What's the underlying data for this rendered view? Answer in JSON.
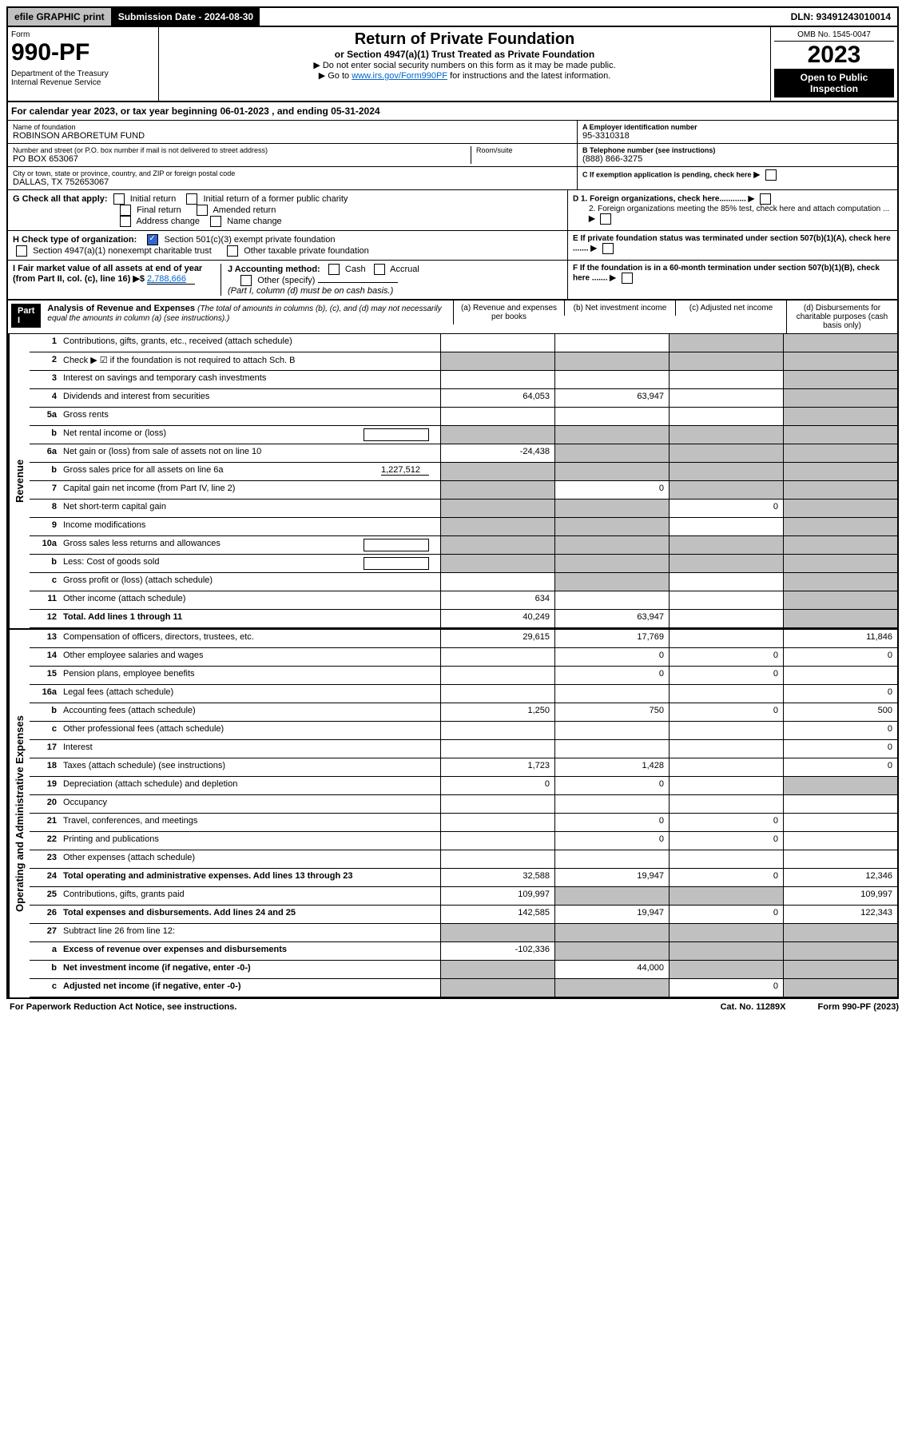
{
  "topbar": {
    "efile": "efile GRAPHIC print",
    "sub_label": "Submission Date - 2024-08-30",
    "dln": "DLN: 93491243010014"
  },
  "header": {
    "form_label": "Form",
    "form_number": "990-PF",
    "dept": "Department of the Treasury\nInternal Revenue Service",
    "title": "Return of Private Foundation",
    "subtitle": "or Section 4947(a)(1) Trust Treated as Private Foundation",
    "note1": "▶ Do not enter social security numbers on this form as it may be made public.",
    "note2_pre": "▶ Go to ",
    "note2_link": "www.irs.gov/Form990PF",
    "note2_post": " for instructions and the latest information.",
    "omb": "OMB No. 1545-0047",
    "year": "2023",
    "open": "Open to Public Inspection"
  },
  "cal_year": "For calendar year 2023, or tax year beginning 06-01-2023                 , and ending 05-31-2024",
  "foundation": {
    "name_label": "Name of foundation",
    "name": "ROBINSON ARBORETUM FUND",
    "addr_label": "Number and street (or P.O. box number if mail is not delivered to street address)",
    "addr": "PO BOX 653067",
    "room_label": "Room/suite",
    "city_label": "City or town, state or province, country, and ZIP or foreign postal code",
    "city": "DALLAS, TX  752653067",
    "ein_label": "A Employer identification number",
    "ein": "95-3310318",
    "phone_label": "B Telephone number (see instructions)",
    "phone": "(888) 866-3275",
    "c_label": "C If exemption application is pending, check here",
    "d1": "D 1. Foreign organizations, check here............",
    "d2": "2. Foreign organizations meeting the 85% test, check here and attach computation ...",
    "e_label": "E If private foundation status was terminated under section 507(b)(1)(A), check here .......",
    "f_label": "F If the foundation is in a 60-month termination under section 507(b)(1)(B), check here .......",
    "g_label": "G Check all that apply:",
    "g_opts": [
      "Initial return",
      "Initial return of a former public charity",
      "Final return",
      "Amended return",
      "Address change",
      "Name change"
    ],
    "h_label": "H Check type of organization:",
    "h_opt1": "Section 501(c)(3) exempt private foundation",
    "h_opt2": "Section 4947(a)(1) nonexempt charitable trust",
    "h_opt3": "Other taxable private foundation",
    "i_label": "I Fair market value of all assets at end of year (from Part II, col. (c), line 16) ▶$",
    "i_value": "2,788,666",
    "j_label": "J Accounting method:",
    "j_cash": "Cash",
    "j_accrual": "Accrual",
    "j_other": "Other (specify)",
    "j_note": "(Part I, column (d) must be on cash basis.)"
  },
  "part1": {
    "label": "Part I",
    "title": "Analysis of Revenue and Expenses",
    "note": "(The total of amounts in columns (b), (c), and (d) may not necessarily equal the amounts in column (a) (see instructions).)",
    "col_a": "(a) Revenue and expenses per books",
    "col_b": "(b) Net investment income",
    "col_c": "(c) Adjusted net income",
    "col_d": "(d) Disbursements for charitable purposes (cash basis only)"
  },
  "side_labels": {
    "revenue": "Revenue",
    "expenses": "Operating and Administrative Expenses"
  },
  "rows": [
    {
      "n": "1",
      "desc": "Contributions, gifts, grants, etc., received (attach schedule)",
      "a": "",
      "b": "",
      "c": "shaded",
      "d": "shaded"
    },
    {
      "n": "2",
      "desc": "Check ▶ ☑ if the foundation is not required to attach Sch. B",
      "a": "shaded",
      "b": "shaded",
      "c": "shaded",
      "d": "shaded",
      "checked": true
    },
    {
      "n": "3",
      "desc": "Interest on savings and temporary cash investments",
      "a": "",
      "b": "",
      "c": "",
      "d": "shaded"
    },
    {
      "n": "4",
      "desc": "Dividends and interest from securities",
      "a": "64,053",
      "b": "63,947",
      "c": "",
      "d": "shaded"
    },
    {
      "n": "5a",
      "desc": "Gross rents",
      "a": "",
      "b": "",
      "c": "",
      "d": "shaded"
    },
    {
      "n": "b",
      "desc": "Net rental income or (loss)",
      "a": "shaded",
      "b": "shaded",
      "c": "shaded",
      "d": "shaded",
      "box": true
    },
    {
      "n": "6a",
      "desc": "Net gain or (loss) from sale of assets not on line 10",
      "a": "-24,438",
      "b": "shaded",
      "c": "shaded",
      "d": "shaded"
    },
    {
      "n": "b",
      "desc": "Gross sales price for all assets on line 6a",
      "a": "shaded",
      "b": "shaded",
      "c": "shaded",
      "d": "shaded",
      "inline": "1,227,512"
    },
    {
      "n": "7",
      "desc": "Capital gain net income (from Part IV, line 2)",
      "a": "shaded",
      "b": "0",
      "c": "shaded",
      "d": "shaded"
    },
    {
      "n": "8",
      "desc": "Net short-term capital gain",
      "a": "shaded",
      "b": "shaded",
      "c": "0",
      "d": "shaded"
    },
    {
      "n": "9",
      "desc": "Income modifications",
      "a": "shaded",
      "b": "shaded",
      "c": "",
      "d": "shaded"
    },
    {
      "n": "10a",
      "desc": "Gross sales less returns and allowances",
      "a": "shaded",
      "b": "shaded",
      "c": "shaded",
      "d": "shaded",
      "box": true
    },
    {
      "n": "b",
      "desc": "Less: Cost of goods sold",
      "a": "shaded",
      "b": "shaded",
      "c": "shaded",
      "d": "shaded",
      "box": true
    },
    {
      "n": "c",
      "desc": "Gross profit or (loss) (attach schedule)",
      "a": "",
      "b": "shaded",
      "c": "",
      "d": "shaded"
    },
    {
      "n": "11",
      "desc": "Other income (attach schedule)",
      "a": "634",
      "b": "",
      "c": "",
      "d": "shaded"
    },
    {
      "n": "12",
      "desc": "Total. Add lines 1 through 11",
      "a": "40,249",
      "b": "63,947",
      "c": "",
      "d": "shaded",
      "bold": true
    }
  ],
  "exp_rows": [
    {
      "n": "13",
      "desc": "Compensation of officers, directors, trustees, etc.",
      "a": "29,615",
      "b": "17,769",
      "c": "",
      "d": "11,846"
    },
    {
      "n": "14",
      "desc": "Other employee salaries and wages",
      "a": "",
      "b": "0",
      "c": "0",
      "d": "0"
    },
    {
      "n": "15",
      "desc": "Pension plans, employee benefits",
      "a": "",
      "b": "0",
      "c": "0",
      "d": ""
    },
    {
      "n": "16a",
      "desc": "Legal fees (attach schedule)",
      "a": "",
      "b": "",
      "c": "",
      "d": "0"
    },
    {
      "n": "b",
      "desc": "Accounting fees (attach schedule)",
      "a": "1,250",
      "b": "750",
      "c": "0",
      "d": "500"
    },
    {
      "n": "c",
      "desc": "Other professional fees (attach schedule)",
      "a": "",
      "b": "",
      "c": "",
      "d": "0"
    },
    {
      "n": "17",
      "desc": "Interest",
      "a": "",
      "b": "",
      "c": "",
      "d": "0"
    },
    {
      "n": "18",
      "desc": "Taxes (attach schedule) (see instructions)",
      "a": "1,723",
      "b": "1,428",
      "c": "",
      "d": "0"
    },
    {
      "n": "19",
      "desc": "Depreciation (attach schedule) and depletion",
      "a": "0",
      "b": "0",
      "c": "",
      "d": "shaded"
    },
    {
      "n": "20",
      "desc": "Occupancy",
      "a": "",
      "b": "",
      "c": "",
      "d": ""
    },
    {
      "n": "21",
      "desc": "Travel, conferences, and meetings",
      "a": "",
      "b": "0",
      "c": "0",
      "d": ""
    },
    {
      "n": "22",
      "desc": "Printing and publications",
      "a": "",
      "b": "0",
      "c": "0",
      "d": ""
    },
    {
      "n": "23",
      "desc": "Other expenses (attach schedule)",
      "a": "",
      "b": "",
      "c": "",
      "d": ""
    },
    {
      "n": "24",
      "desc": "Total operating and administrative expenses. Add lines 13 through 23",
      "a": "32,588",
      "b": "19,947",
      "c": "0",
      "d": "12,346",
      "bold": true
    },
    {
      "n": "25",
      "desc": "Contributions, gifts, grants paid",
      "a": "109,997",
      "b": "shaded",
      "c": "shaded",
      "d": "109,997"
    },
    {
      "n": "26",
      "desc": "Total expenses and disbursements. Add lines 24 and 25",
      "a": "142,585",
      "b": "19,947",
      "c": "0",
      "d": "122,343",
      "bold": true
    },
    {
      "n": "27",
      "desc": "Subtract line 26 from line 12:",
      "a": "shaded",
      "b": "shaded",
      "c": "shaded",
      "d": "shaded"
    },
    {
      "n": "a",
      "desc": "Excess of revenue over expenses and disbursements",
      "a": "-102,336",
      "b": "shaded",
      "c": "shaded",
      "d": "shaded",
      "bold": true
    },
    {
      "n": "b",
      "desc": "Net investment income (if negative, enter -0-)",
      "a": "shaded",
      "b": "44,000",
      "c": "shaded",
      "d": "shaded",
      "bold": true
    },
    {
      "n": "c",
      "desc": "Adjusted net income (if negative, enter -0-)",
      "a": "shaded",
      "b": "shaded",
      "c": "0",
      "d": "shaded",
      "bold": true
    }
  ],
  "footer": {
    "left": "For Paperwork Reduction Act Notice, see instructions.",
    "center": "Cat. No. 11289X",
    "right": "Form 990-PF (2023)"
  }
}
